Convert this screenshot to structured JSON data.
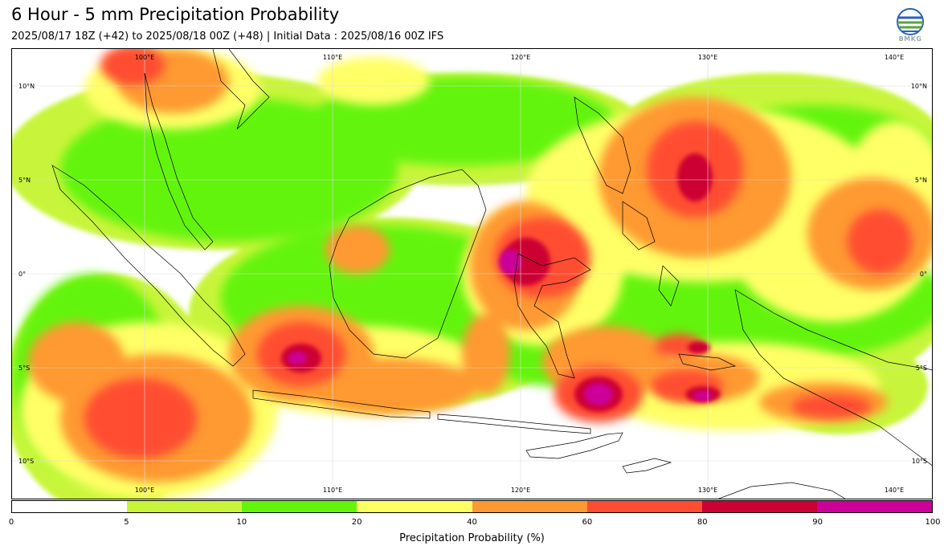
{
  "header": {
    "title": "6 Hour - 5 mm Precipitation Probability",
    "subtitle": "2025/08/17 18Z (+42) to 2025/08/18 00Z (+48) | Initial Data : 2025/08/16 00Z IFS"
  },
  "logo": {
    "text": "BMKG",
    "icon": "bmkg-globe-logo"
  },
  "map": {
    "lon_labels_top": [
      "100°E",
      "110°E",
      "120°E",
      "130°E",
      "140°E"
    ],
    "lon_labels_bottom": [
      "100°E",
      "110°E",
      "120°E",
      "130°E",
      "140°E"
    ],
    "lat_labels_left": [
      "10°N",
      "5°N",
      "0°",
      "5°S",
      "10°S"
    ],
    "lat_labels_right": [
      "10°N",
      "5°N",
      "0°",
      "5°S",
      "10°S"
    ],
    "lon_range": [
      93,
      142
    ],
    "lat_range": [
      -12,
      11.5
    ]
  },
  "colorbar": {
    "title": "Precipitation Probability (%)",
    "ticks": [
      "0",
      "5",
      "10",
      "20",
      "40",
      "60",
      "80",
      "90",
      "100"
    ],
    "colors": [
      "#ffffff",
      "#c8f53a",
      "#64f40a",
      "#ffff66",
      "#ff9933",
      "#ff4d33",
      "#cc0033",
      "#cc0099"
    ]
  }
}
